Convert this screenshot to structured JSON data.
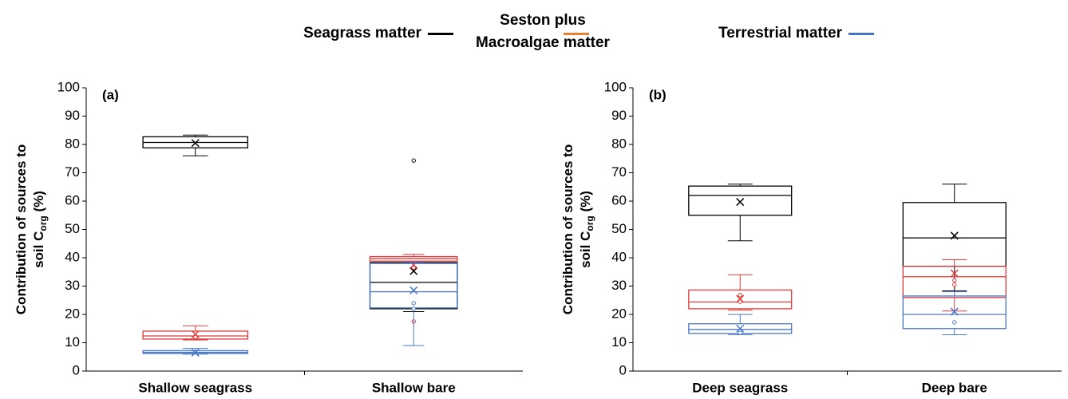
{
  "legend": [
    {
      "name": "Seagrass matter",
      "color": "#000000"
    },
    {
      "name": "Seston plus\nMacroalgae matter",
      "color": "#ed7d31"
    },
    {
      "name": "Terrestrial matter",
      "color": "#4472c4"
    }
  ],
  "ylabel": {
    "line1": "Contribution of sources to",
    "line2": "soil  C",
    "sub": "org",
    "unit": " (%)"
  },
  "chart_data": [
    {
      "type": "box",
      "label": "(a)",
      "categories": [
        "Shallow seagrass",
        "Shallow bare"
      ],
      "ylim": [
        0,
        100
      ],
      "yticks": [
        0,
        10,
        20,
        30,
        40,
        50,
        60,
        70,
        80,
        90,
        100
      ],
      "series": [
        {
          "color": "#000000",
          "min": [
            76,
            21
          ],
          "q1": [
            78.8,
            22
          ],
          "median": [
            80.7,
            31.3
          ],
          "q3": [
            82.7,
            38.3
          ],
          "max": [
            83.3,
            38.5
          ],
          "mean": [
            80.5,
            35.3
          ],
          "outliers": [
            [],
            [
              74.3
            ]
          ]
        },
        {
          "color": "#e03a3a",
          "min": [
            11,
            38.5
          ],
          "q1": [
            11.3,
            38.8
          ],
          "median": [
            12.4,
            39.7
          ],
          "q3": [
            14.1,
            40.4
          ],
          "max": [
            16,
            41.2
          ],
          "mean": [
            13,
            37.5
          ],
          "outliers": [
            [
              12
            ],
            [
              36.5,
              17.5
            ]
          ]
        },
        {
          "color": "#4a78c8",
          "min": [
            6,
            9
          ],
          "q1": [
            6.2,
            22.3
          ],
          "median": [
            6.6,
            28
          ],
          "q3": [
            7.2,
            38
          ],
          "max": [
            8,
            38.5
          ],
          "mean": [
            6.5,
            28.5
          ],
          "outliers": [
            [],
            [
              24,
              22
            ]
          ]
        }
      ]
    },
    {
      "type": "box",
      "label": "(b)",
      "categories": [
        "Deep seagrass",
        "Deep bare"
      ],
      "ylim": [
        0,
        100
      ],
      "yticks": [
        0,
        10,
        20,
        30,
        40,
        50,
        60,
        70,
        80,
        90,
        100
      ],
      "series": [
        {
          "color": "#000000",
          "min": [
            46,
            28.3
          ],
          "q1": [
            55,
            37
          ],
          "median": [
            62,
            47
          ],
          "q3": [
            65.3,
            59.5
          ],
          "max": [
            66,
            66
          ],
          "mean": [
            59.7,
            47.8
          ],
          "outliers": [
            [],
            []
          ]
        },
        {
          "color": "#e03a3a",
          "min": [
            21.5,
            21.2
          ],
          "q1": [
            22,
            26
          ],
          "median": [
            24.4,
            33.3
          ],
          "q3": [
            28.6,
            37
          ],
          "max": [
            34,
            39.3
          ],
          "mean": [
            25.5,
            34.5
          ],
          "outliers": [
            [
              26.8,
              24.5
            ],
            [
              32,
              30.5
            ]
          ]
        },
        {
          "color": "#4a78c8",
          "min": [
            12.8,
            12.8
          ],
          "q1": [
            13.3,
            15
          ],
          "median": [
            14.7,
            20
          ],
          "q3": [
            16.7,
            26.5
          ],
          "max": [
            20,
            28
          ],
          "mean": [
            15,
            21
          ],
          "outliers": [
            [
              13.5
            ],
            [
              17.2
            ]
          ]
        }
      ]
    }
  ]
}
